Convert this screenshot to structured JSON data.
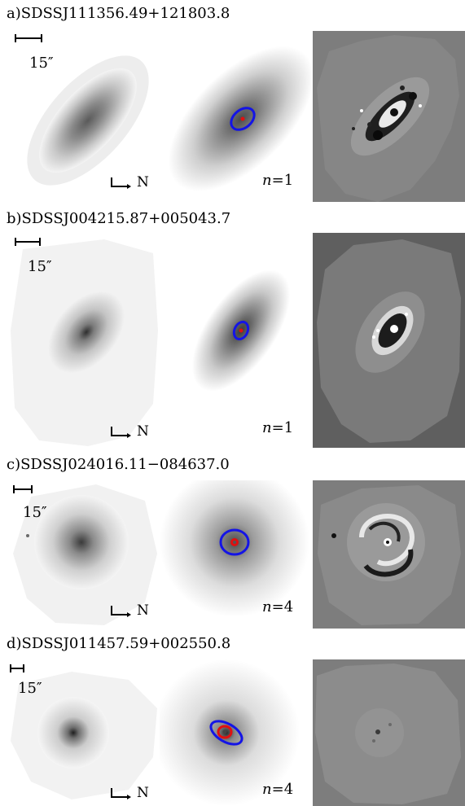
{
  "figure": {
    "panels": [
      {
        "title": "a)SDSSJ111356.49+121803.8",
        "scale_label": "15″",
        "north_label": "N",
        "n_label": "n",
        "n_eq": "=",
        "n_value": "1"
      },
      {
        "title": "b)SDSSJ004215.87+005043.7",
        "scale_label": "15″",
        "north_label": "N",
        "n_label": "n",
        "n_eq": "=",
        "n_value": "1"
      },
      {
        "title": "c)SDSSJ024016.11−084637.0",
        "scale_label": "15″",
        "north_label": "N",
        "n_label": "n",
        "n_eq": "=",
        "n_value": "4"
      },
      {
        "title": "d)SDSSJ011457.59+002550.8",
        "scale_label": "15″",
        "north_label": "N",
        "n_label": "n",
        "n_eq": "=",
        "n_value": "4"
      }
    ],
    "colors": {
      "ellipse_outer": "#1414e6",
      "ellipse_inner": "#e01010",
      "residual_bg": "#7d7d7d"
    }
  }
}
